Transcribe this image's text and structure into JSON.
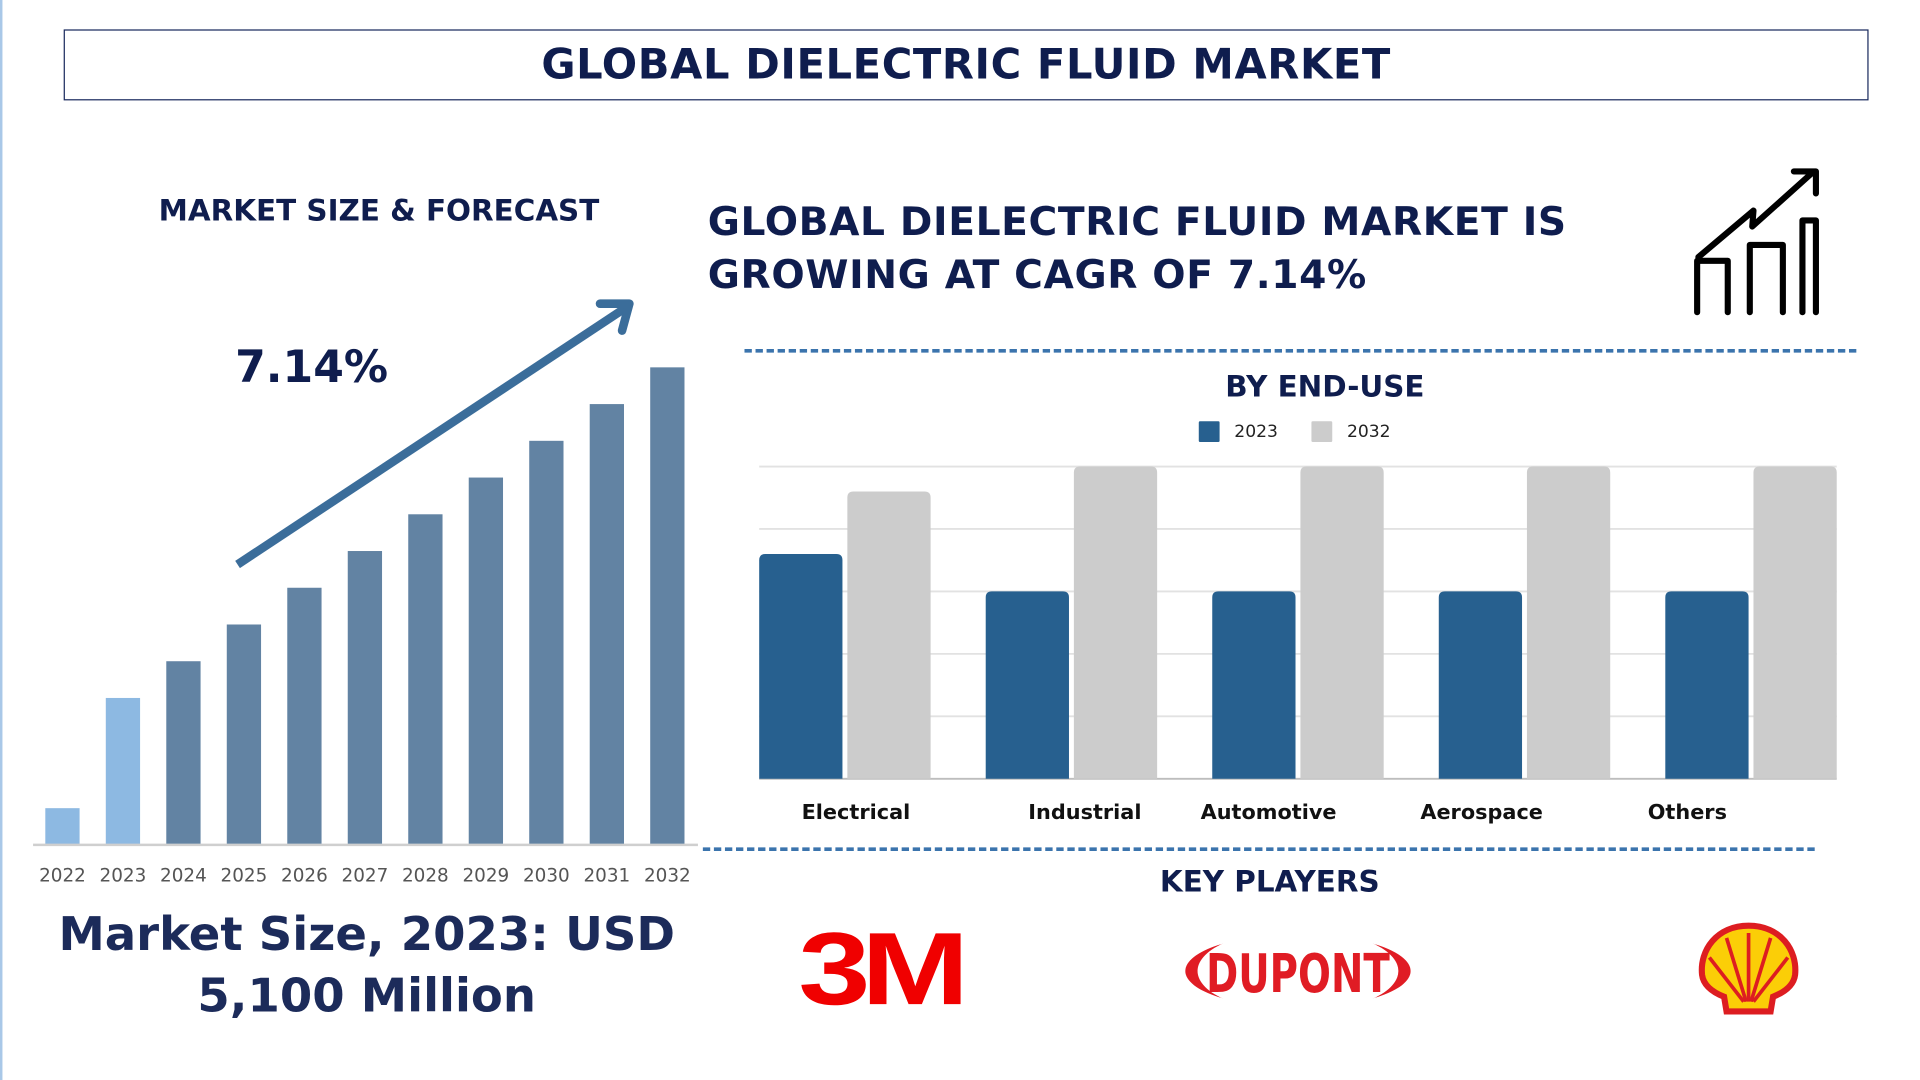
{
  "title": "GLOBAL DIELECTRIC FLUID MARKET",
  "market_forecast": {
    "heading": "MARKET SIZE & FORECAST",
    "cagr_label": "7.14%",
    "market_size_text": "Market Size, 2023: USD 5,100 Million"
  },
  "headline": "GLOBAL DIELECTRIC FLUID MARKET IS GROWING AT CAGR OF 7.14%",
  "by_end_use_heading": "BY END-USE",
  "key_players": {
    "heading": "KEY PLAYERS",
    "logos": [
      "3M",
      "DUPONT",
      "Shell"
    ]
  },
  "colors": {
    "navy": "#0f1d4e",
    "forecast_bar": "#6283a3",
    "historic_bar": "#8db9e2",
    "series_2023": "#27608f",
    "series_2032": "#cccccc",
    "dashed_divider": "#3b74ad"
  },
  "icons": [
    "growth-chart-icon",
    "trend-arrow-icon"
  ],
  "chart_data": [
    {
      "type": "bar",
      "title": "",
      "categories": [
        "2022",
        "2023",
        "2024",
        "2025",
        "2026",
        "2027",
        "2028",
        "2029",
        "2030",
        "2031",
        "2032"
      ],
      "values": [
        1,
        4,
        5,
        6,
        7,
        8,
        9,
        10,
        11,
        12,
        13
      ],
      "highlighted": [
        "2022",
        "2023"
      ],
      "annotation": "7.14%",
      "grid": false
    },
    {
      "type": "bar",
      "title": "BY END-USE",
      "categories": [
        "Electrical",
        "Industrial",
        "Automotive",
        "Aerospace",
        "Others"
      ],
      "series": [
        {
          "name": "2023",
          "values": [
            3.6,
            3.0,
            3.0,
            3.0,
            3.0
          ]
        },
        {
          "name": "2032",
          "values": [
            4.6,
            5.0,
            5.0,
            5.0,
            5.0
          ]
        }
      ],
      "ylim": [
        0,
        5
      ],
      "grid": true,
      "legend": "top"
    }
  ]
}
